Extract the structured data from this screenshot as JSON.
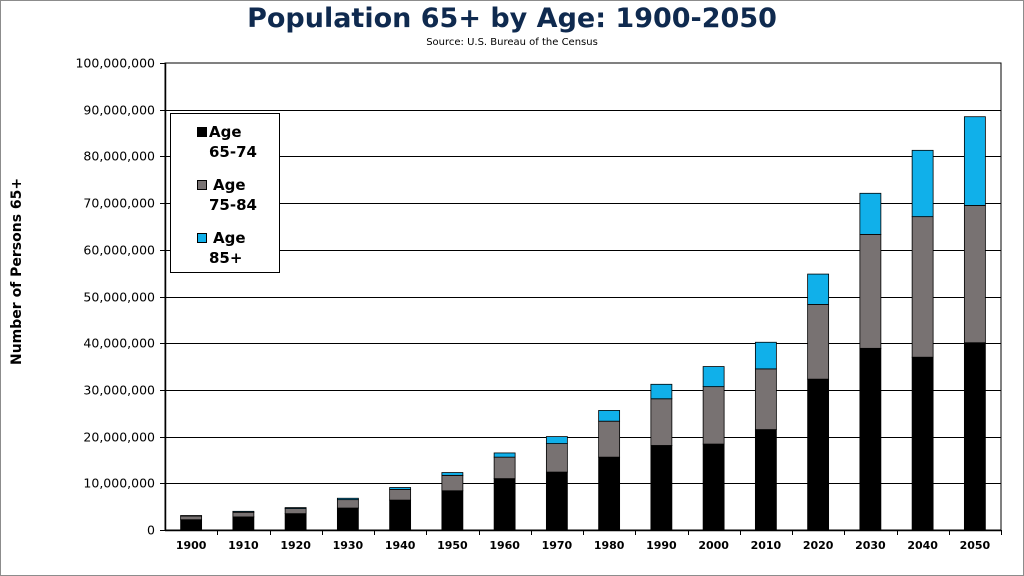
{
  "chart_data": {
    "type": "bar",
    "stacked": true,
    "title": "Population 65+ by Age: 1900-2050",
    "subtitle": "Source: U.S. Bureau  of the Census",
    "ylabel": "Number of Persons 65+",
    "xlabel": "",
    "ylim": [
      0,
      100000000
    ],
    "yticks": [
      "0",
      "10,000,000",
      "20,000,000",
      "30,000,000",
      "40,000,000",
      "50,000,000",
      "60,000,000",
      "70,000,000",
      "80,000,000",
      "90,000,000",
      "100,000,000"
    ],
    "grid": true,
    "legend_position": "top-left",
    "categories": [
      "1900",
      "1910",
      "1920",
      "1930",
      "1940",
      "1950",
      "1960",
      "1970",
      "1980",
      "1990",
      "2000",
      "2010",
      "2020",
      "2030",
      "2040",
      "2050"
    ],
    "series": [
      {
        "name": "Age 65-74",
        "legend_lines": [
          "Age",
          "65-74"
        ],
        "color": "#000000",
        "values": [
          2200000,
          2800000,
          3500000,
          4700000,
          6400000,
          8400000,
          11000000,
          12400000,
          15600000,
          18100000,
          18400000,
          21500000,
          32300000,
          38900000,
          37000000,
          40100000
        ]
      },
      {
        "name": "Age 75-84",
        "legend_lines": [
          "Age",
          "75-84"
        ],
        "color": "#787272",
        "values": [
          800000,
          1000000,
          1100000,
          1800000,
          2300000,
          3300000,
          4600000,
          6100000,
          7700000,
          10000000,
          12300000,
          13000000,
          16000000,
          24400000,
          30100000,
          29400000
        ]
      },
      {
        "name": "Age 85+",
        "legend_lines": [
          "Age",
          "85+"
        ],
        "color": "#10b0ea",
        "values": [
          100000,
          200000,
          200000,
          300000,
          400000,
          600000,
          900000,
          1500000,
          2300000,
          3100000,
          4300000,
          5700000,
          6500000,
          8800000,
          14200000,
          19000000
        ]
      }
    ]
  }
}
